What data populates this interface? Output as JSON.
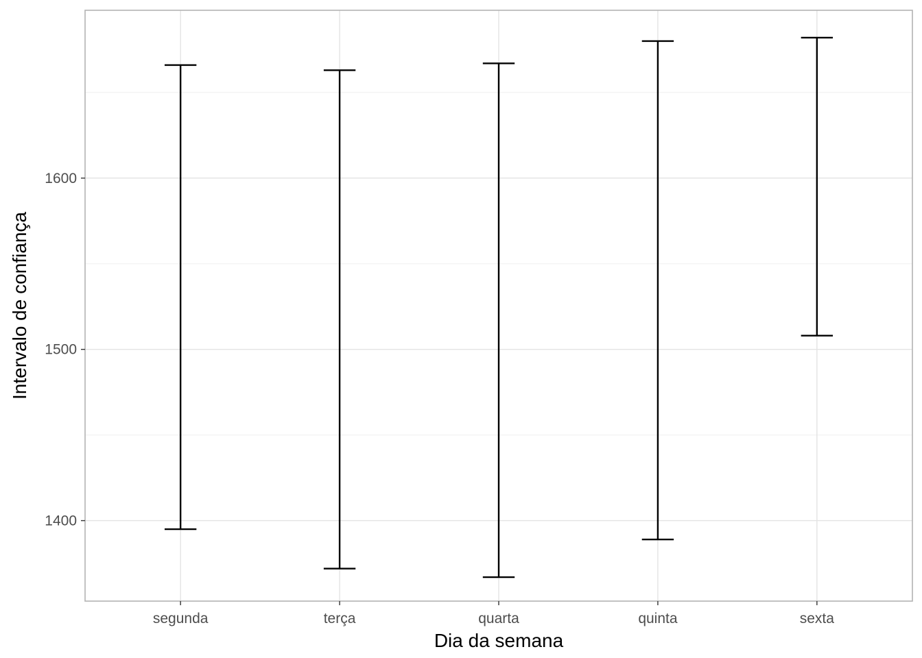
{
  "chart_data": {
    "type": "errorbar",
    "title": "",
    "xlabel": "Dia da semana",
    "ylabel": "Intervalo de confiança",
    "categories": [
      "segunda",
      "terça",
      "quarta",
      "quinta",
      "sexta"
    ],
    "lower": [
      1395,
      1372,
      1367,
      1389,
      1508
    ],
    "upper": [
      1666,
      1663,
      1667,
      1680,
      1682
    ],
    "ylim": [
      1353,
      1698
    ],
    "y_ticks": [
      1400,
      1500,
      1600
    ],
    "y_tick_labels": [
      "1400",
      "1500",
      "1600"
    ],
    "y_minor_ticks": [
      1450,
      1550,
      1650
    ],
    "grid": true,
    "legend": "none",
    "colors": {
      "errorbar": "#000000",
      "grid_major": "#e3e3e3",
      "grid_minor": "#f0f0f0",
      "panel_border": "#b3b3b3",
      "tick_label": "#4d4d4d",
      "axis_title": "#000000"
    }
  }
}
